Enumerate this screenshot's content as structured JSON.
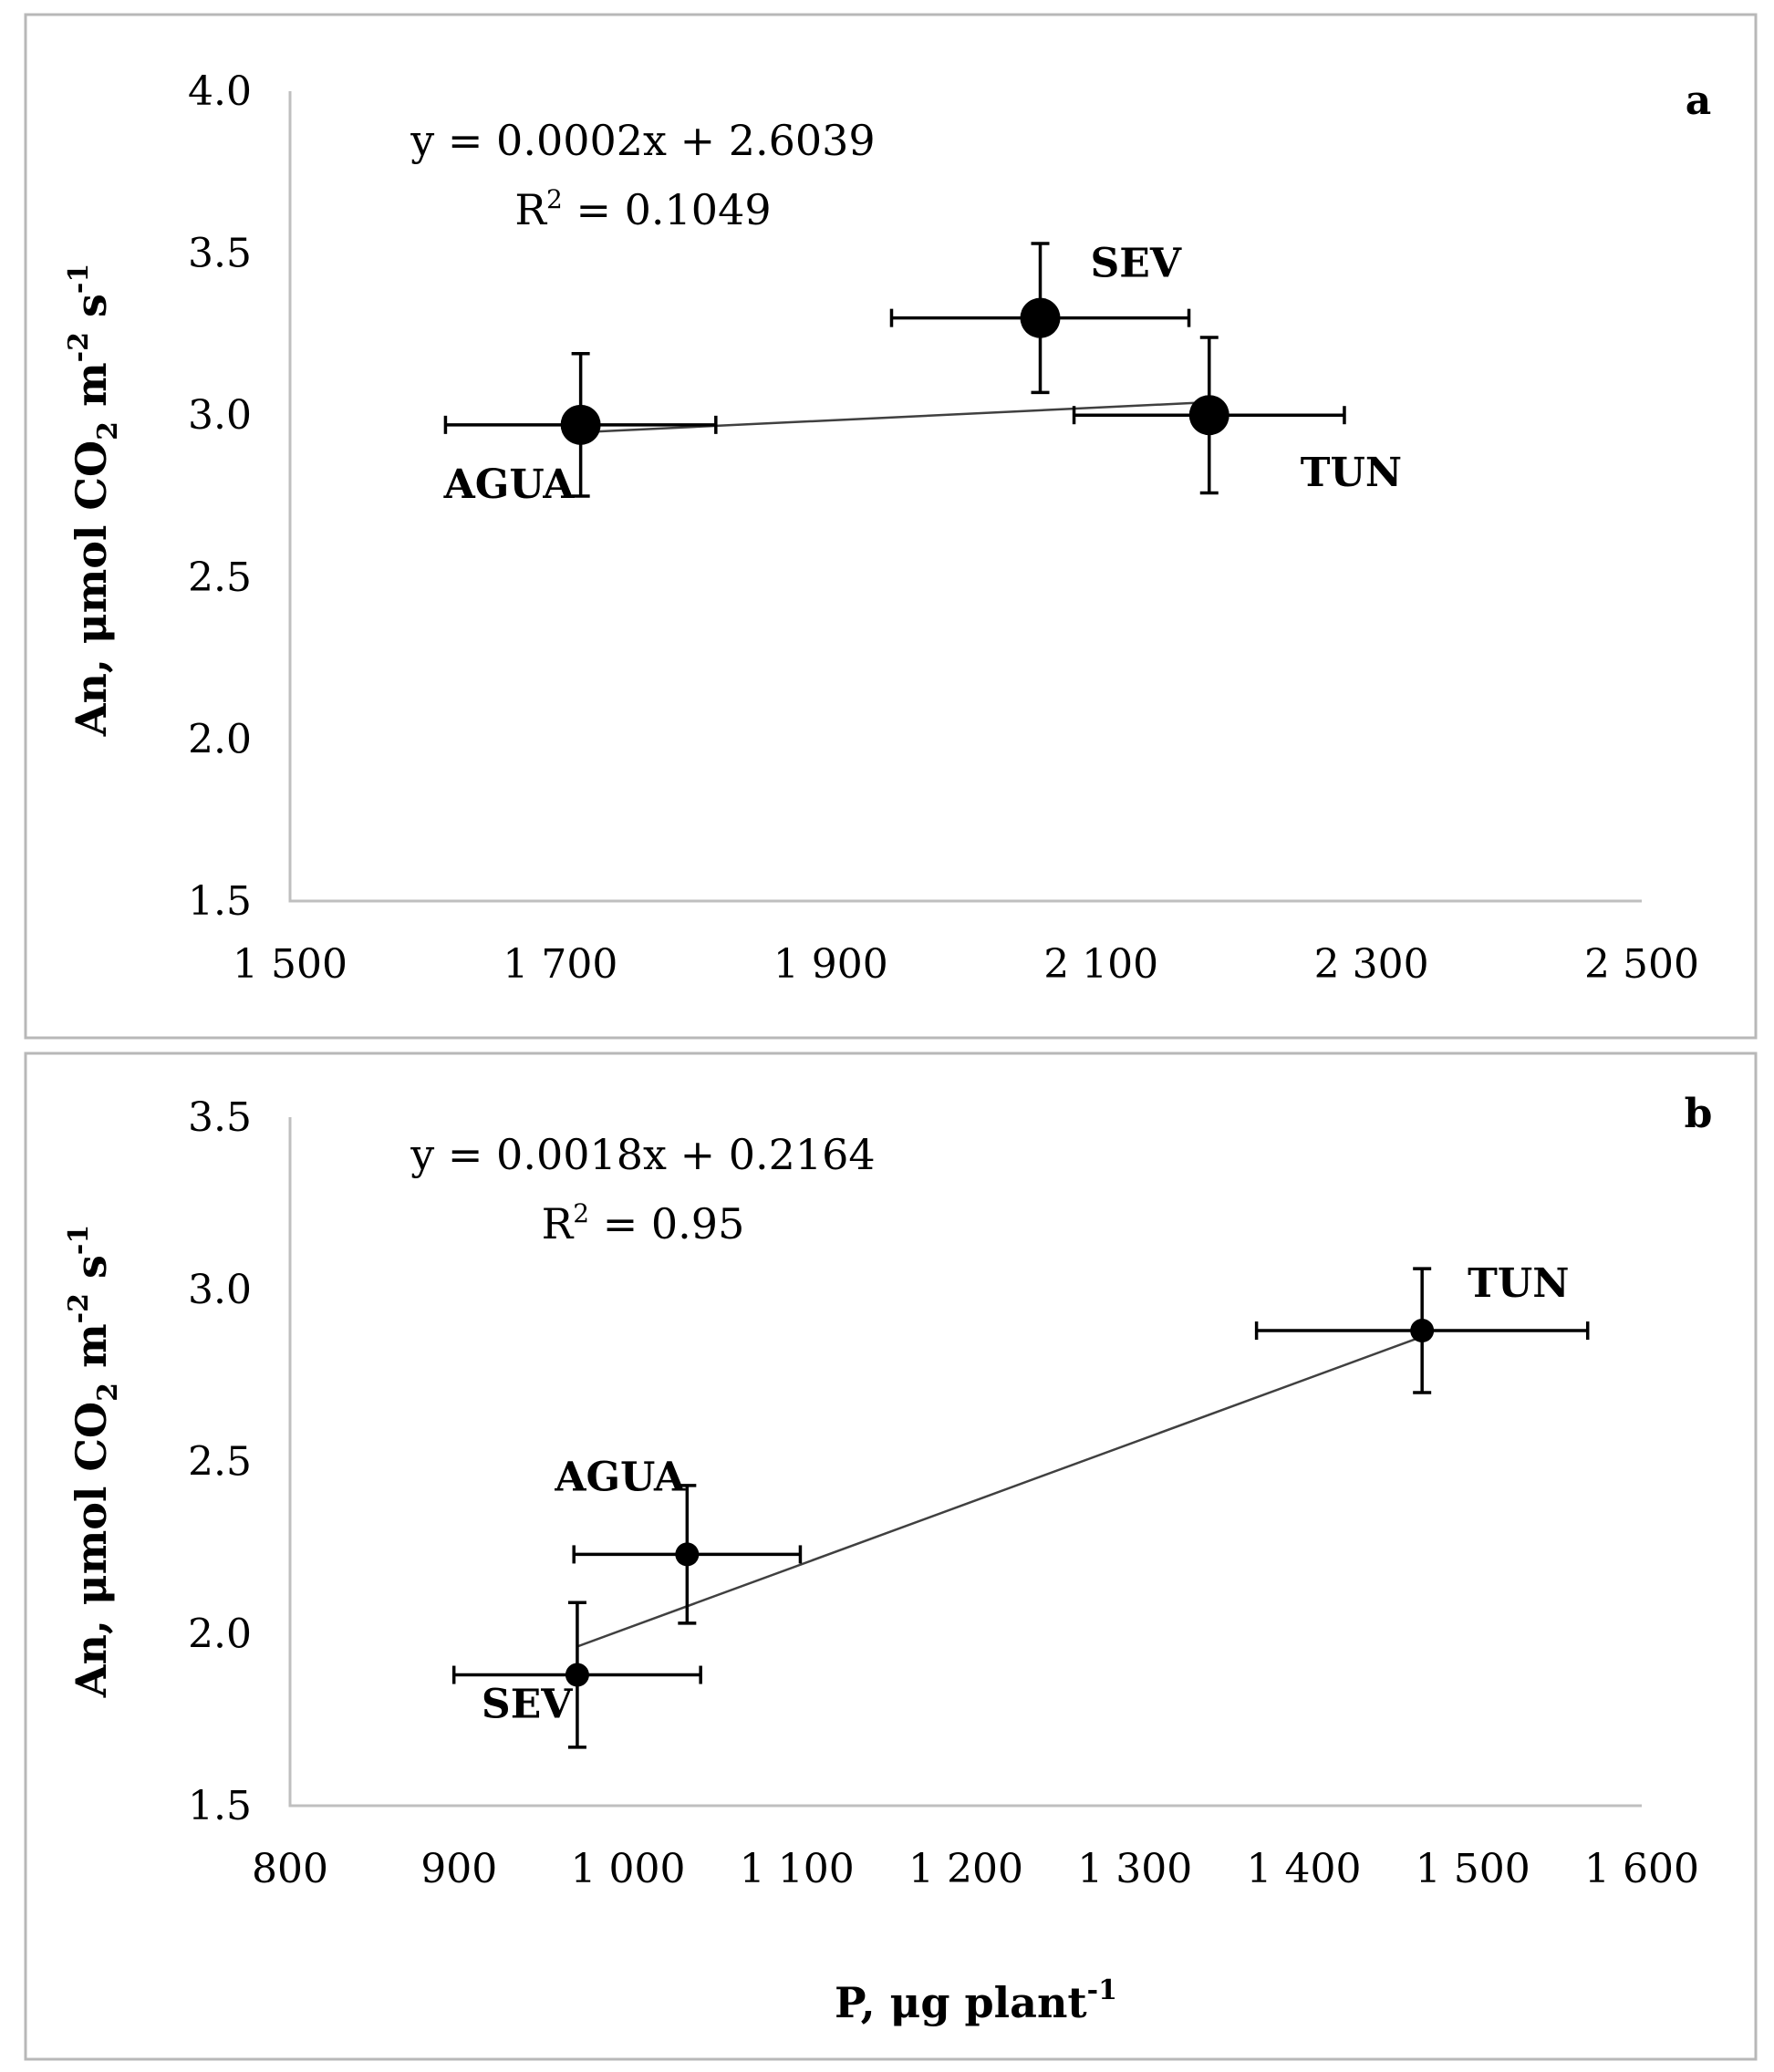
{
  "chart_data": [
    {
      "type": "scatter",
      "panel_label": "a",
      "title": "",
      "xlabel": "",
      "ylabel": "An, μmol CO₂ m⁻² s⁻¹",
      "ylabel_parts": {
        "main": "An, μmol CO",
        "sub2": "2",
        "m": " m",
        "sup1": "-2",
        "s": " s",
        "sup2": "-1"
      },
      "xlim": [
        1500,
        2500
      ],
      "ylim": [
        1.5,
        4.0
      ],
      "xticks": [
        1500,
        1700,
        1900,
        2100,
        2300,
        2500
      ],
      "xtick_labels": [
        "1 500",
        "1 700",
        "1 900",
        "2 100",
        "2 300",
        "2 500"
      ],
      "yticks": [
        1.5,
        2.0,
        2.5,
        3.0,
        3.5,
        4.0
      ],
      "ytick_labels": [
        "1.5",
        "2.0",
        "2.5",
        "3.0",
        "3.5",
        "4.0"
      ],
      "equation": "y = 0.0002x + 2.6039",
      "r2_prefix": "R",
      "r2_sup": "2",
      "r2_value": " = 0.1049",
      "trendline": {
        "slope": 0.0002,
        "intercept": 2.6039,
        "x_range": [
          1710,
          2180
        ]
      },
      "points": [
        {
          "name": "AGUA",
          "x": 1715,
          "y": 2.97,
          "xerr": 100,
          "yerr": 0.22,
          "label_pos": "below-left"
        },
        {
          "name": "SEV",
          "x": 2055,
          "y": 3.3,
          "xerr": 110,
          "yerr": 0.23,
          "label_pos": "upper-right"
        },
        {
          "name": "TUN",
          "x": 2180,
          "y": 3.0,
          "xerr": 100,
          "yerr": 0.24,
          "label_pos": "lower-right"
        }
      ],
      "marker_size": "large"
    },
    {
      "type": "scatter",
      "panel_label": "b",
      "title": "",
      "xlabel": "P, μg plant⁻¹",
      "xlabel_parts": {
        "main": "P, μg plant",
        "sup": "-1"
      },
      "ylabel": "An, μmol CO₂ m⁻² s⁻¹",
      "ylabel_parts": {
        "main": "An, μmol CO",
        "sub2": "2",
        "m": " m",
        "sup1": "-2",
        "s": " s",
        "sup2": "-1"
      },
      "xlim": [
        800,
        1600
      ],
      "ylim": [
        1.5,
        3.5
      ],
      "xticks": [
        800,
        900,
        1000,
        1100,
        1200,
        1300,
        1400,
        1500,
        1600
      ],
      "xtick_labels": [
        "800",
        "900",
        "1 000",
        "1 100",
        "1 200",
        "1 300",
        "1 400",
        "1 500",
        "1 600"
      ],
      "yticks": [
        1.5,
        2.0,
        2.5,
        3.0,
        3.5
      ],
      "ytick_labels": [
        "1.5",
        "2.0",
        "2.5",
        "3.0",
        "3.5"
      ],
      "equation": "y = 0.0018x + 0.2164",
      "r2_prefix": "R",
      "r2_sup": "2",
      "r2_value": " = 0.95",
      "trendline": {
        "slope": 0.0018,
        "intercept": 0.2164,
        "x_range": [
          970,
          1470
        ]
      },
      "points": [
        {
          "name": "SEV",
          "x": 970,
          "y": 1.88,
          "xerr": 73,
          "yerr": 0.21,
          "label_pos": "below-left"
        },
        {
          "name": "AGUA",
          "x": 1035,
          "y": 2.23,
          "xerr": 67,
          "yerr": 0.2,
          "label_pos": "upper-left"
        },
        {
          "name": "TUN",
          "x": 1470,
          "y": 2.88,
          "xerr": 98,
          "yerr": 0.18,
          "label_pos": "upper-right"
        }
      ],
      "marker_size": "small"
    }
  ]
}
